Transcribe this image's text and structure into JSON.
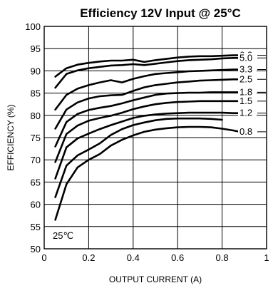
{
  "chart_data": {
    "type": "line",
    "title": "Efficiency 12V Input @ 25°C",
    "xlabel": "OUTPUT CURRENT (A)",
    "ylabel": "EFFICIENCY (%)",
    "xlim": [
      0,
      1
    ],
    "ylim": [
      50,
      100
    ],
    "x_ticks": [
      "0",
      "0.2",
      "0.4",
      "0.6",
      "0.8",
      "1"
    ],
    "y_ticks": [
      "50",
      "55",
      "60",
      "65",
      "70",
      "75",
      "80",
      "85",
      "90",
      "95",
      "100"
    ],
    "grid": true,
    "annotation": "25℃",
    "series": [
      {
        "name": "6.0",
        "x": [
          0.05,
          0.1,
          0.15,
          0.2,
          0.25,
          0.3,
          0.35,
          0.4,
          0.45,
          0.5,
          0.55,
          0.6,
          0.65,
          0.7,
          0.75,
          0.8,
          0.85,
          0.88
        ],
        "y": [
          88.7,
          90.6,
          91.4,
          91.8,
          92.1,
          92.3,
          92.3,
          92.5,
          92.0,
          92.4,
          92.7,
          93.0,
          93.2,
          93.3,
          93.3,
          93.4,
          93.5,
          93.5
        ]
      },
      {
        "name": "5.0",
        "x": [
          0.05,
          0.1,
          0.15,
          0.2,
          0.25,
          0.3,
          0.35,
          0.4,
          0.45,
          0.5,
          0.55,
          0.6,
          0.65,
          0.7,
          0.75,
          0.8,
          0.85,
          0.88
        ],
        "y": [
          86.2,
          89.3,
          90.1,
          90.6,
          90.9,
          91.2,
          91.3,
          91.5,
          91.3,
          91.6,
          91.9,
          92.2,
          92.4,
          92.5,
          92.6,
          92.8,
          92.9,
          92.9
        ]
      },
      {
        "name": "3.3",
        "x": [
          0.05,
          0.1,
          0.15,
          0.2,
          0.25,
          0.3,
          0.35,
          0.4,
          0.45,
          0.5,
          0.55,
          0.6,
          0.65,
          0.7,
          0.75,
          0.8,
          0.85,
          0.88
        ],
        "y": [
          81.3,
          84.6,
          86.0,
          86.8,
          87.4,
          87.9,
          87.4,
          88.2,
          88.8,
          89.3,
          89.5,
          89.7,
          89.9,
          90.0,
          90.1,
          90.2,
          90.3,
          90.3
        ]
      },
      {
        "name": "2.5",
        "x": [
          0.05,
          0.1,
          0.15,
          0.2,
          0.25,
          0.3,
          0.35,
          0.4,
          0.45,
          0.5,
          0.55,
          0.6,
          0.65,
          0.7,
          0.75,
          0.8,
          0.85,
          0.88
        ],
        "y": [
          77.0,
          81.3,
          82.9,
          83.8,
          84.3,
          84.5,
          84.6,
          85.5,
          86.3,
          86.8,
          87.1,
          87.4,
          87.6,
          87.8,
          87.9,
          88.0,
          88.1,
          88.1
        ]
      },
      {
        "name": "1.8",
        "x": [
          0.05,
          0.1,
          0.15,
          0.2,
          0.25,
          0.3,
          0.35,
          0.4,
          0.45,
          0.5,
          0.55,
          0.6,
          0.65,
          0.7,
          0.75,
          0.8,
          0.85,
          0.88
        ],
        "y": [
          73.0,
          78.5,
          80.3,
          81.2,
          81.7,
          82.1,
          82.7,
          83.4,
          84.0,
          84.6,
          84.9,
          85.0,
          85.1,
          85.1,
          85.2,
          85.2,
          85.2,
          85.2
        ]
      },
      {
        "name": "1.5",
        "x": [
          0.05,
          0.1,
          0.15,
          0.2,
          0.25,
          0.3,
          0.35,
          0.4,
          0.45,
          0.5,
          0.55,
          0.6,
          0.65,
          0.7,
          0.75,
          0.8,
          0.85,
          0.88
        ],
        "y": [
          69.5,
          75.8,
          77.7,
          78.8,
          79.4,
          79.9,
          80.6,
          81.4,
          82.0,
          82.5,
          82.8,
          83.0,
          83.1,
          83.2,
          83.2,
          83.2,
          83.2,
          83.2
        ]
      },
      {
        "name": "1.2",
        "x": [
          0.05,
          0.1,
          0.15,
          0.2,
          0.25,
          0.3,
          0.35,
          0.4,
          0.45,
          0.5,
          0.55,
          0.6,
          0.65,
          0.7,
          0.75,
          0.8,
          0.85,
          0.88
        ],
        "y": [
          65.8,
          72.8,
          74.8,
          75.9,
          76.9,
          77.8,
          78.6,
          79.4,
          79.9,
          80.2,
          80.4,
          80.5,
          80.6,
          80.6,
          80.6,
          80.6,
          80.5,
          80.5
        ]
      },
      {
        "name": "0.8",
        "x": [
          0.05,
          0.1,
          0.15,
          0.2,
          0.25,
          0.3,
          0.35,
          0.4,
          0.45,
          0.5,
          0.55,
          0.6,
          0.65,
          0.7,
          0.75,
          0.8,
          0.85,
          0.88
        ],
        "y": [
          56.5,
          64.5,
          68.3,
          70.0,
          71.3,
          73.2,
          74.5,
          75.5,
          76.3,
          76.8,
          77.1,
          77.3,
          77.4,
          77.4,
          77.3,
          77.0,
          76.6,
          76.3
        ]
      },
      {
        "name": "",
        "x": [
          0.05,
          0.1,
          0.15,
          0.2,
          0.25,
          0.3,
          0.35,
          0.4,
          0.45,
          0.5,
          0.55,
          0.6,
          0.65,
          0.7,
          0.75,
          0.8
        ],
        "y": [
          61.6,
          68.7,
          71.0,
          72.3,
          73.7,
          75.6,
          76.9,
          77.8,
          78.4,
          78.9,
          79.2,
          79.3,
          79.3,
          79.3,
          79.2,
          79.0
        ]
      }
    ]
  }
}
